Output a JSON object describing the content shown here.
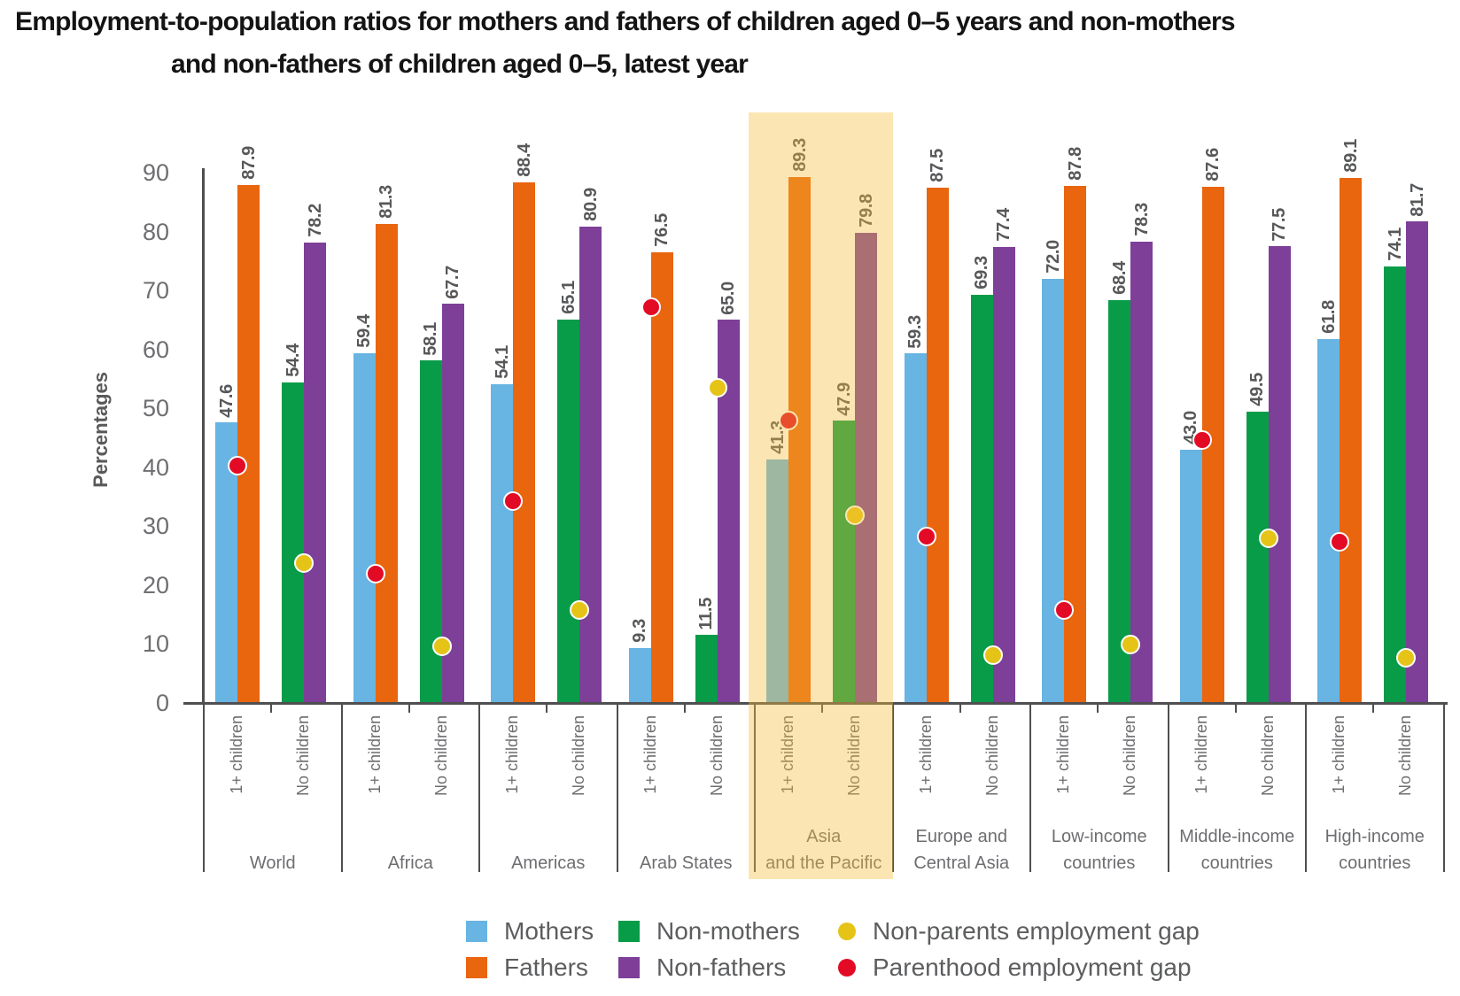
{
  "title": {
    "line1": "Employment-to-population ratios for mothers and fathers of children aged 0–5 years and non-mothers",
    "line2": "and non-fathers of children aged 0–5, latest year"
  },
  "colors": {
    "mothers": "#68b4e2",
    "fathers": "#e9650e",
    "non_mothers": "#089c48",
    "non_fathers": "#7d3f98",
    "parenthood_gap": "#e30a26",
    "non_parents_gap": "#e6c417",
    "highlight_band": "rgba(244,188,54,0.38)",
    "axis": "#4f4f51"
  },
  "chart_data": {
    "type": "bar",
    "title": "Employment-to-population ratios for mothers and fathers of children aged 0–5 years and non-mothers and non-fathers of children aged 0–5, latest year",
    "ylabel": "Percentages",
    "ylim": [
      0,
      90
    ],
    "yticks": [
      0,
      10,
      20,
      30,
      40,
      50,
      60,
      70,
      80,
      90
    ],
    "grid": false,
    "legend_position": "bottom",
    "pair_labels": [
      "1+ children",
      "No children"
    ],
    "series_names": [
      "Mothers",
      "Fathers",
      "Non-mothers",
      "Non-fathers"
    ],
    "highlighted_group": "Asia and the Pacific",
    "groups": [
      {
        "name": "World",
        "lines": [
          "World"
        ],
        "highlighted": false,
        "mothers": 47.6,
        "fathers": 87.9,
        "non_mothers": 54.4,
        "non_fathers": 78.2,
        "parenthood_gap": 40.3,
        "non_parents_gap": 23.8
      },
      {
        "name": "Africa",
        "lines": [
          "Africa"
        ],
        "highlighted": false,
        "mothers": 59.4,
        "fathers": 81.3,
        "non_mothers": 58.1,
        "non_fathers": 67.7,
        "parenthood_gap": 21.9,
        "non_parents_gap": 9.6
      },
      {
        "name": "Americas",
        "lines": [
          "Americas"
        ],
        "highlighted": false,
        "mothers": 54.1,
        "fathers": 88.4,
        "non_mothers": 65.1,
        "non_fathers": 80.9,
        "parenthood_gap": 34.3,
        "non_parents_gap": 15.8
      },
      {
        "name": "Arab States",
        "lines": [
          "Arab States"
        ],
        "highlighted": false,
        "mothers": 9.3,
        "fathers": 76.5,
        "non_mothers": 11.5,
        "non_fathers": 65.0,
        "parenthood_gap": 67.2,
        "non_parents_gap": 53.5
      },
      {
        "name": "Asia and the Pacific",
        "lines": [
          "Asia",
          "and the Pacific"
        ],
        "highlighted": true,
        "mothers": 41.3,
        "fathers": 89.3,
        "non_mothers": 47.9,
        "non_fathers": 79.8,
        "parenthood_gap": 48.0,
        "non_parents_gap": 31.9
      },
      {
        "name": "Europe and Central Asia",
        "lines": [
          "Europe and",
          "Central Asia"
        ],
        "highlighted": false,
        "mothers": 59.3,
        "fathers": 87.5,
        "non_mothers": 69.3,
        "non_fathers": 77.4,
        "parenthood_gap": 28.2,
        "non_parents_gap": 8.1
      },
      {
        "name": "Low-income countries",
        "lines": [
          "Low-income",
          "countries"
        ],
        "highlighted": false,
        "mothers": 72.0,
        "fathers": 87.8,
        "non_mothers": 68.4,
        "non_fathers": 78.3,
        "parenthood_gap": 15.8,
        "non_parents_gap": 9.9
      },
      {
        "name": "Middle-income countries",
        "lines": [
          "Middle-income",
          "countries"
        ],
        "highlighted": false,
        "mothers": 43.0,
        "fathers": 87.6,
        "non_mothers": 49.5,
        "non_fathers": 77.5,
        "parenthood_gap": 44.6,
        "non_parents_gap": 28.0
      },
      {
        "name": "High-income countries",
        "lines": [
          "High-income",
          "countries"
        ],
        "highlighted": false,
        "mothers": 61.8,
        "fathers": 89.1,
        "non_mothers": 74.1,
        "non_fathers": 81.7,
        "parenthood_gap": 27.3,
        "non_parents_gap": 7.6
      }
    ],
    "legend": {
      "rows": [
        [
          {
            "marker": "square",
            "color_key": "mothers",
            "label": "Mothers"
          },
          {
            "marker": "square",
            "color_key": "non_mothers",
            "label": "Non-mothers"
          },
          {
            "marker": "dot",
            "color_key": "non_parents_gap",
            "label": "Non-parents employment gap"
          }
        ],
        [
          {
            "marker": "square",
            "color_key": "fathers",
            "label": "Fathers"
          },
          {
            "marker": "square",
            "color_key": "non_fathers",
            "label": "Non-fathers"
          },
          {
            "marker": "dot",
            "color_key": "parenthood_gap",
            "label": "Parenthood employment gap"
          }
        ]
      ]
    }
  }
}
